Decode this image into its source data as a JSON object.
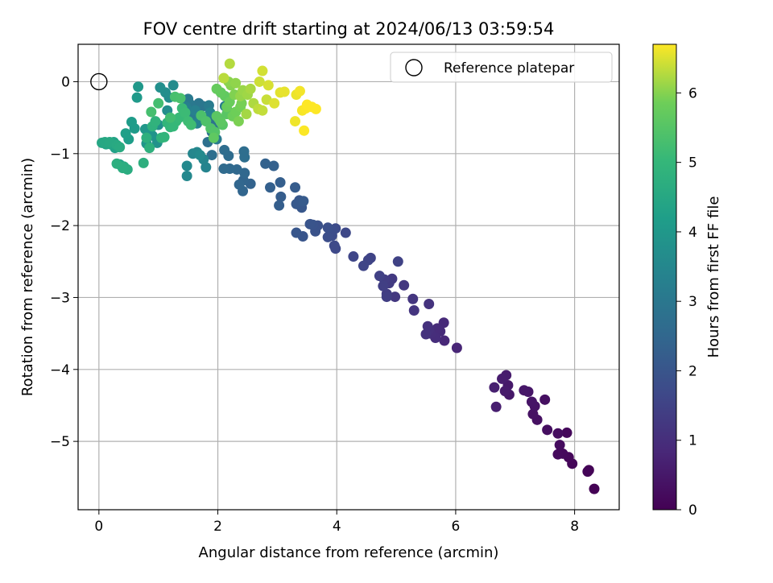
{
  "chart_data": {
    "type": "scatter",
    "title": "FOV centre drift starting at 2024/06/13 03:59:54",
    "xlabel": "Angular distance from reference (arcmin)",
    "ylabel": "Rotation from reference (arcmin)",
    "xlim": [
      -0.35,
      8.75
    ],
    "ylim": [
      -5.95,
      0.52
    ],
    "xticks": [
      0,
      2,
      4,
      6,
      8
    ],
    "yticks": [
      0,
      -1,
      -2,
      -3,
      -4,
      -5
    ],
    "grid": true,
    "legend": {
      "position": "top-right",
      "entries": [
        "Reference platepar"
      ]
    },
    "reference_point": {
      "x": 0,
      "y": 0
    },
    "colorbar": {
      "label": "Hours from first FF file",
      "colormap": "viridis",
      "range": [
        0,
        6.7
      ],
      "ticks": [
        0,
        1,
        2,
        3,
        4,
        5,
        6
      ]
    },
    "points": [
      [
        8.33,
        -5.66,
        0.02
      ],
      [
        8.24,
        -5.4,
        0.05
      ],
      [
        8.22,
        -5.42,
        0.07
      ],
      [
        7.96,
        -5.31,
        0.1
      ],
      [
        7.9,
        -5.22,
        0.13
      ],
      [
        7.87,
        -4.88,
        0.16
      ],
      [
        7.8,
        -5.17,
        0.18
      ],
      [
        7.72,
        -5.18,
        0.2
      ],
      [
        7.75,
        -5.05,
        0.23
      ],
      [
        7.72,
        -4.89,
        0.25
      ],
      [
        7.54,
        -4.84,
        0.28
      ],
      [
        7.5,
        -4.42,
        0.31
      ],
      [
        7.37,
        -4.7,
        0.33
      ],
      [
        7.3,
        -4.62,
        0.36
      ],
      [
        7.33,
        -4.51,
        0.39
      ],
      [
        7.28,
        -4.45,
        0.41
      ],
      [
        7.22,
        -4.31,
        0.44
      ],
      [
        7.15,
        -4.29,
        0.47
      ],
      [
        6.9,
        -4.35,
        0.5
      ],
      [
        6.88,
        -4.22,
        0.52
      ],
      [
        6.83,
        -4.3,
        0.55
      ],
      [
        6.85,
        -4.08,
        0.58
      ],
      [
        6.78,
        -4.13,
        0.6
      ],
      [
        6.68,
        -4.52,
        0.63
      ],
      [
        6.65,
        -4.25,
        0.66
      ],
      [
        6.02,
        -3.7,
        0.8
      ],
      [
        5.81,
        -3.6,
        0.85
      ],
      [
        5.8,
        -3.35,
        0.88
      ],
      [
        5.74,
        -3.47,
        0.91
      ],
      [
        5.69,
        -3.43,
        0.94
      ],
      [
        5.66,
        -3.56,
        0.97
      ],
      [
        5.58,
        -3.5,
        1.0
      ],
      [
        5.55,
        -3.45,
        1.03
      ],
      [
        5.53,
        -3.4,
        1.06
      ],
      [
        5.5,
        -3.51,
        1.09
      ],
      [
        5.55,
        -3.09,
        1.12
      ],
      [
        5.3,
        -3.18,
        1.16
      ],
      [
        5.28,
        -3.02,
        1.19
      ],
      [
        5.13,
        -2.83,
        1.22
      ],
      [
        4.98,
        -2.99,
        1.25
      ],
      [
        4.93,
        -2.74,
        1.28
      ],
      [
        4.88,
        -2.8,
        1.31
      ],
      [
        4.84,
        -2.95,
        1.34
      ],
      [
        4.8,
        -2.75,
        1.37
      ],
      [
        4.84,
        -2.99,
        1.4
      ],
      [
        4.78,
        -2.84,
        1.43
      ],
      [
        4.72,
        -2.7,
        1.46
      ],
      [
        5.03,
        -2.5,
        1.49
      ],
      [
        4.57,
        -2.45,
        1.52
      ],
      [
        4.53,
        -2.48,
        1.55
      ],
      [
        4.45,
        -2.56,
        1.58
      ],
      [
        4.28,
        -2.43,
        1.61
      ],
      [
        4.15,
        -2.1,
        1.64
      ],
      [
        3.98,
        -2.32,
        1.67
      ],
      [
        3.96,
        -2.28,
        1.7
      ],
      [
        3.98,
        -2.04,
        1.73
      ],
      [
        3.92,
        -2.14,
        1.76
      ],
      [
        3.93,
        -2.07,
        1.79
      ],
      [
        3.85,
        -2.16,
        1.82
      ],
      [
        3.85,
        -2.03,
        1.85
      ],
      [
        3.68,
        -2.0,
        1.88
      ],
      [
        3.64,
        -2.08,
        1.91
      ],
      [
        3.6,
        -1.99,
        1.94
      ],
      [
        3.55,
        -1.98,
        1.97
      ],
      [
        3.43,
        -2.15,
        2.0
      ],
      [
        3.32,
        -2.1,
        2.03
      ],
      [
        3.41,
        -1.75,
        2.06
      ],
      [
        3.37,
        -1.65,
        2.09
      ],
      [
        3.32,
        -1.7,
        2.12
      ],
      [
        3.44,
        -1.66,
        2.15
      ],
      [
        3.3,
        -1.47,
        2.18
      ],
      [
        3.06,
        -1.6,
        2.21
      ],
      [
        3.03,
        -1.72,
        2.24
      ],
      [
        3.05,
        -1.4,
        2.27
      ],
      [
        2.88,
        -1.47,
        2.3
      ],
      [
        2.94,
        -1.17,
        2.33
      ],
      [
        2.8,
        -1.14,
        2.36
      ],
      [
        2.55,
        -1.42,
        2.39
      ],
      [
        2.43,
        -1.37,
        2.42
      ],
      [
        2.42,
        -1.52,
        2.45
      ],
      [
        2.36,
        -1.43,
        2.48
      ],
      [
        2.45,
        -1.27,
        2.51
      ],
      [
        2.32,
        -1.22,
        2.54
      ],
      [
        2.2,
        -1.21,
        2.57
      ],
      [
        2.1,
        -1.21,
        2.6
      ],
      [
        2.18,
        -1.03,
        2.63
      ],
      [
        2.11,
        -0.95,
        2.66
      ],
      [
        2.44,
        -0.97,
        2.69
      ],
      [
        2.45,
        -1.05,
        2.72
      ],
      [
        1.9,
        -1.02,
        2.75
      ],
      [
        1.83,
        -0.84,
        2.78
      ],
      [
        1.9,
        -0.7,
        2.81
      ],
      [
        1.95,
        -0.62,
        2.84
      ],
      [
        1.9,
        -0.54,
        2.87
      ],
      [
        1.87,
        -0.46,
        2.9
      ],
      [
        1.75,
        -0.34,
        2.93
      ],
      [
        1.68,
        -0.3,
        2.96
      ],
      [
        1.58,
        -0.36,
        2.99
      ],
      [
        1.53,
        -0.31,
        3.02
      ],
      [
        1.5,
        -0.24,
        3.05
      ],
      [
        1.6,
        -0.48,
        3.08
      ],
      [
        1.98,
        -0.8,
        3.11
      ],
      [
        1.85,
        -0.33,
        3.14
      ],
      [
        2.12,
        -0.34,
        3.17
      ],
      [
        2.17,
        -0.41,
        3.2
      ],
      [
        1.5,
        -0.4,
        3.23
      ],
      [
        1.46,
        -0.35,
        3.26
      ],
      [
        1.62,
        -0.4,
        3.29
      ],
      [
        1.7,
        -0.52,
        3.32
      ],
      [
        1.65,
        -0.58,
        3.35
      ],
      [
        1.87,
        -0.43,
        3.38
      ],
      [
        1.8,
        -1.19,
        3.41
      ],
      [
        1.76,
        -1.08,
        3.44
      ],
      [
        1.58,
        -1.0,
        3.47
      ],
      [
        1.65,
        -0.98,
        3.5
      ],
      [
        1.48,
        -1.31,
        3.53
      ],
      [
        1.48,
        -1.17,
        3.56
      ],
      [
        1.7,
        -1.02,
        3.59
      ],
      [
        1.25,
        -0.05,
        3.62
      ],
      [
        1.18,
        -0.22,
        3.65
      ],
      [
        1.15,
        -0.4,
        3.68
      ],
      [
        1.12,
        -0.15,
        3.71
      ],
      [
        1.03,
        -0.08,
        3.74
      ],
      [
        1.0,
        -0.6,
        3.78
      ],
      [
        0.98,
        -0.85,
        3.82
      ],
      [
        0.9,
        -0.75,
        3.86
      ],
      [
        0.85,
        -0.72,
        3.9
      ],
      [
        0.8,
        -0.86,
        3.94
      ],
      [
        0.78,
        -0.66,
        3.98
      ],
      [
        0.66,
        -0.07,
        4.02
      ],
      [
        0.64,
        -0.22,
        4.06
      ],
      [
        0.6,
        -0.65,
        4.1
      ],
      [
        0.55,
        -0.56,
        4.14
      ],
      [
        0.5,
        -0.8,
        4.18
      ],
      [
        0.45,
        -0.72,
        4.22
      ],
      [
        0.35,
        -1.15,
        4.26
      ],
      [
        0.27,
        -0.92,
        4.3
      ],
      [
        0.25,
        -0.84,
        4.34
      ],
      [
        0.2,
        -0.87,
        4.38
      ],
      [
        0.12,
        -0.87,
        4.42
      ],
      [
        0.05,
        -0.85,
        4.46
      ],
      [
        0.1,
        -0.84,
        4.5
      ],
      [
        0.18,
        -0.84,
        4.53
      ],
      [
        0.3,
        -0.88,
        4.56
      ],
      [
        0.35,
        -0.91,
        4.59
      ],
      [
        0.42,
        -1.18,
        4.62
      ],
      [
        0.48,
        -1.22,
        4.65
      ],
      [
        0.4,
        -1.2,
        4.68
      ],
      [
        0.3,
        -1.14,
        4.71
      ],
      [
        0.75,
        -1.13,
        4.74
      ],
      [
        0.8,
        -0.78,
        4.77
      ],
      [
        0.85,
        -0.92,
        4.8
      ],
      [
        0.9,
        -0.62,
        4.83
      ],
      [
        0.95,
        -0.55,
        4.86
      ],
      [
        1.05,
        -0.78,
        4.89
      ],
      [
        1.1,
        -0.77,
        4.92
      ],
      [
        1.15,
        -0.57,
        4.95
      ],
      [
        1.2,
        -0.63,
        4.98
      ],
      [
        1.25,
        -0.62,
        5.01
      ],
      [
        1.3,
        -0.55,
        5.04
      ],
      [
        1.35,
        -0.5,
        5.07
      ],
      [
        1.4,
        -0.37,
        5.1
      ],
      [
        1.45,
        -0.43,
        5.13
      ],
      [
        1.5,
        -0.55,
        5.16
      ],
      [
        1.55,
        -0.6,
        5.19
      ],
      [
        1.2,
        -0.5,
        5.22
      ],
      [
        1.0,
        -0.3,
        5.25
      ],
      [
        0.88,
        -0.42,
        5.28
      ],
      [
        1.28,
        -0.21,
        5.31
      ],
      [
        1.37,
        -0.23,
        5.34
      ],
      [
        1.72,
        -0.47,
        5.37
      ],
      [
        1.8,
        -0.55,
        5.4
      ],
      [
        1.88,
        -0.65,
        5.43
      ],
      [
        1.95,
        -0.7,
        5.46
      ],
      [
        2.02,
        -0.52,
        5.49
      ],
      [
        2.08,
        -0.6,
        5.52
      ],
      [
        2.15,
        -0.45,
        5.55
      ],
      [
        1.98,
        -0.48,
        5.58
      ],
      [
        2.05,
        -0.56,
        5.61
      ],
      [
        1.93,
        -0.78,
        5.64
      ],
      [
        2.12,
        -0.2,
        5.67
      ],
      [
        2.05,
        -0.15,
        5.7
      ],
      [
        1.98,
        -0.1,
        5.73
      ],
      [
        2.15,
        -0.35,
        5.76
      ],
      [
        2.2,
        -0.28,
        5.79
      ],
      [
        2.25,
        -0.48,
        5.82
      ],
      [
        2.3,
        -0.42,
        5.85
      ],
      [
        2.38,
        -0.35,
        5.88
      ],
      [
        2.4,
        -0.3,
        5.91
      ],
      [
        2.35,
        -0.55,
        5.94
      ],
      [
        2.28,
        -0.18,
        5.97
      ],
      [
        2.22,
        -0.05,
        6.0
      ],
      [
        2.18,
        0.0,
        6.03
      ],
      [
        2.3,
        -0.02,
        6.06
      ],
      [
        2.38,
        -0.2,
        6.09
      ],
      [
        2.42,
        -0.12,
        6.12
      ],
      [
        2.5,
        -0.18,
        6.15
      ],
      [
        2.48,
        -0.45,
        6.18
      ],
      [
        2.55,
        -0.1,
        6.21
      ],
      [
        2.6,
        -0.3,
        6.24
      ],
      [
        2.2,
        0.25,
        6.27
      ],
      [
        2.1,
        0.05,
        6.3
      ],
      [
        2.68,
        -0.38,
        6.33
      ],
      [
        2.75,
        -0.4,
        6.36
      ],
      [
        2.82,
        -0.25,
        6.39
      ],
      [
        2.7,
        0.0,
        6.42
      ],
      [
        2.75,
        0.15,
        6.45
      ],
      [
        2.85,
        -0.05,
        6.48
      ],
      [
        2.95,
        -0.3,
        6.51
      ],
      [
        3.05,
        -0.15,
        6.54
      ],
      [
        3.12,
        -0.14,
        6.57
      ],
      [
        3.32,
        -0.18,
        6.6
      ],
      [
        3.3,
        -0.55,
        6.62
      ],
      [
        3.38,
        -0.13,
        6.64
      ],
      [
        3.42,
        -0.4,
        6.66
      ],
      [
        3.48,
        -0.37,
        6.68
      ],
      [
        3.45,
        -0.68,
        6.69
      ],
      [
        3.5,
        -0.32,
        6.7
      ],
      [
        3.58,
        -0.35,
        6.7
      ],
      [
        3.65,
        -0.38,
        6.7
      ]
    ]
  }
}
